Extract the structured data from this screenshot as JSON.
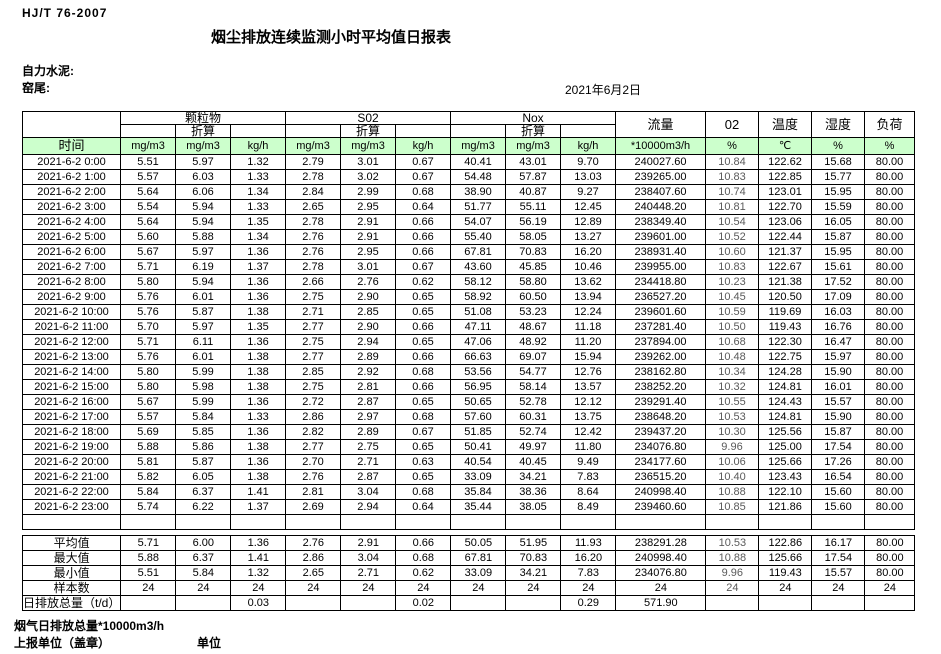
{
  "doc": {
    "standard": "HJ/T 76-2007",
    "title": "烟尘排放连续监测小时平均值日报表",
    "company": "自力水泥:",
    "station": "窑尾:",
    "date": "2021年6月2日"
  },
  "colors": {
    "header_green": "#ccffcc",
    "border": "#000000",
    "o2_text": "#5a5a5a"
  },
  "table": {
    "time_header": "时间",
    "conv_label": "折算",
    "groups": [
      {
        "label": "颗粒物"
      },
      {
        "label": "S02"
      },
      {
        "label": "Nox"
      }
    ],
    "single_cols": [
      "流量",
      "02",
      "温度",
      "湿度",
      "负荷"
    ],
    "units": [
      "mg/m3",
      "mg/m3",
      "kg/h",
      "mg/m3",
      "mg/m3",
      "kg/h",
      "mg/m3",
      "mg/m3",
      "kg/h",
      "*10000m3/h",
      "%",
      "℃",
      "%",
      "%"
    ],
    "rows": [
      {
        "time": "2021-6-2 0:00",
        "values": [
          "5.51",
          "5.97",
          "1.32",
          "2.79",
          "3.01",
          "0.67",
          "40.41",
          "43.01",
          "9.70",
          "240027.60",
          "10.84",
          "122.62",
          "15.68",
          "80.00"
        ]
      },
      {
        "time": "2021-6-2 1:00",
        "values": [
          "5.57",
          "6.03",
          "1.33",
          "2.78",
          "3.02",
          "0.67",
          "54.48",
          "57.87",
          "13.03",
          "239265.00",
          "10.83",
          "122.85",
          "15.77",
          "80.00"
        ]
      },
      {
        "time": "2021-6-2 2:00",
        "values": [
          "5.64",
          "6.06",
          "1.34",
          "2.84",
          "2.99",
          "0.68",
          "38.90",
          "40.87",
          "9.27",
          "238407.60",
          "10.74",
          "123.01",
          "15.95",
          "80.00"
        ]
      },
      {
        "time": "2021-6-2 3:00",
        "values": [
          "5.54",
          "5.94",
          "1.33",
          "2.65",
          "2.95",
          "0.64",
          "51.77",
          "55.11",
          "12.45",
          "240448.20",
          "10.81",
          "122.70",
          "15.59",
          "80.00"
        ]
      },
      {
        "time": "2021-6-2 4:00",
        "values": [
          "5.64",
          "5.94",
          "1.35",
          "2.78",
          "2.91",
          "0.66",
          "54.07",
          "56.19",
          "12.89",
          "238349.40",
          "10.54",
          "123.06",
          "16.05",
          "80.00"
        ]
      },
      {
        "time": "2021-6-2 5:00",
        "values": [
          "5.60",
          "5.88",
          "1.34",
          "2.76",
          "2.91",
          "0.66",
          "55.40",
          "58.05",
          "13.27",
          "239601.00",
          "10.52",
          "122.44",
          "15.87",
          "80.00"
        ]
      },
      {
        "time": "2021-6-2 6:00",
        "values": [
          "5.67",
          "5.97",
          "1.36",
          "2.76",
          "2.95",
          "0.66",
          "67.81",
          "70.83",
          "16.20",
          "238931.40",
          "10.60",
          "121.37",
          "15.95",
          "80.00"
        ]
      },
      {
        "time": "2021-6-2 7:00",
        "values": [
          "5.71",
          "6.19",
          "1.37",
          "2.78",
          "3.01",
          "0.67",
          "43.60",
          "45.85",
          "10.46",
          "239955.00",
          "10.83",
          "122.67",
          "15.61",
          "80.00"
        ]
      },
      {
        "time": "2021-6-2 8:00",
        "values": [
          "5.80",
          "5.94",
          "1.36",
          "2.66",
          "2.76",
          "0.62",
          "58.12",
          "58.80",
          "13.62",
          "234418.80",
          "10.23",
          "121.38",
          "17.52",
          "80.00"
        ]
      },
      {
        "time": "2021-6-2 9:00",
        "values": [
          "5.76",
          "6.01",
          "1.36",
          "2.75",
          "2.90",
          "0.65",
          "58.92",
          "60.50",
          "13.94",
          "236527.20",
          "10.45",
          "120.50",
          "17.09",
          "80.00"
        ]
      },
      {
        "time": "2021-6-2 10:00",
        "values": [
          "5.76",
          "5.87",
          "1.38",
          "2.71",
          "2.85",
          "0.65",
          "51.08",
          "53.23",
          "12.24",
          "239601.60",
          "10.59",
          "119.69",
          "16.03",
          "80.00"
        ]
      },
      {
        "time": "2021-6-2 11:00",
        "values": [
          "5.70",
          "5.97",
          "1.35",
          "2.77",
          "2.90",
          "0.66",
          "47.11",
          "48.67",
          "11.18",
          "237281.40",
          "10.50",
          "119.43",
          "16.76",
          "80.00"
        ]
      },
      {
        "time": "2021-6-2 12:00",
        "values": [
          "5.71",
          "6.11",
          "1.36",
          "2.75",
          "2.94",
          "0.65",
          "47.06",
          "48.92",
          "11.20",
          "237894.00",
          "10.68",
          "122.30",
          "16.47",
          "80.00"
        ]
      },
      {
        "time": "2021-6-2 13:00",
        "values": [
          "5.76",
          "6.01",
          "1.38",
          "2.77",
          "2.89",
          "0.66",
          "66.63",
          "69.07",
          "15.94",
          "239262.00",
          "10.48",
          "122.75",
          "15.97",
          "80.00"
        ]
      },
      {
        "time": "2021-6-2 14:00",
        "values": [
          "5.80",
          "5.99",
          "1.38",
          "2.85",
          "2.92",
          "0.68",
          "53.56",
          "54.77",
          "12.76",
          "238162.80",
          "10.34",
          "124.28",
          "15.90",
          "80.00"
        ]
      },
      {
        "time": "2021-6-2 15:00",
        "values": [
          "5.80",
          "5.98",
          "1.38",
          "2.75",
          "2.81",
          "0.66",
          "56.95",
          "58.14",
          "13.57",
          "238252.20",
          "10.32",
          "124.81",
          "16.01",
          "80.00"
        ]
      },
      {
        "time": "2021-6-2 16:00",
        "values": [
          "5.67",
          "5.99",
          "1.36",
          "2.72",
          "2.87",
          "0.65",
          "50.65",
          "52.78",
          "12.12",
          "239291.40",
          "10.55",
          "124.43",
          "15.57",
          "80.00"
        ]
      },
      {
        "time": "2021-6-2 17:00",
        "values": [
          "5.57",
          "5.84",
          "1.33",
          "2.86",
          "2.97",
          "0.68",
          "57.60",
          "60.31",
          "13.75",
          "238648.20",
          "10.53",
          "124.81",
          "15.90",
          "80.00"
        ]
      },
      {
        "time": "2021-6-2 18:00",
        "values": [
          "5.69",
          "5.85",
          "1.36",
          "2.82",
          "2.89",
          "0.67",
          "51.85",
          "52.74",
          "12.42",
          "239437.20",
          "10.30",
          "125.56",
          "15.87",
          "80.00"
        ]
      },
      {
        "time": "2021-6-2 19:00",
        "values": [
          "5.88",
          "5.86",
          "1.38",
          "2.77",
          "2.75",
          "0.65",
          "50.41",
          "49.97",
          "11.80",
          "234076.80",
          "9.96",
          "125.00",
          "17.54",
          "80.00"
        ]
      },
      {
        "time": "2021-6-2 20:00",
        "values": [
          "5.81",
          "5.87",
          "1.36",
          "2.70",
          "2.71",
          "0.63",
          "40.54",
          "40.45",
          "9.49",
          "234177.60",
          "10.06",
          "125.66",
          "17.26",
          "80.00"
        ]
      },
      {
        "time": "2021-6-2 21:00",
        "values": [
          "5.82",
          "6.05",
          "1.38",
          "2.76",
          "2.87",
          "0.65",
          "33.09",
          "34.21",
          "7.83",
          "236515.20",
          "10.40",
          "123.43",
          "16.54",
          "80.00"
        ]
      },
      {
        "time": "2021-6-2 22:00",
        "values": [
          "5.84",
          "6.37",
          "1.41",
          "2.81",
          "3.04",
          "0.68",
          "35.84",
          "38.36",
          "8.64",
          "240998.40",
          "10.88",
          "122.10",
          "15.60",
          "80.00"
        ]
      },
      {
        "time": "2021-6-2 23:00",
        "values": [
          "5.74",
          "6.22",
          "1.37",
          "2.69",
          "2.94",
          "0.64",
          "35.44",
          "38.05",
          "8.49",
          "239460.60",
          "10.85",
          "121.86",
          "15.60",
          "80.00"
        ]
      }
    ],
    "summary": [
      {
        "label": "平均值",
        "align": "center",
        "values": [
          "5.71",
          "6.00",
          "1.36",
          "2.76",
          "2.91",
          "0.66",
          "50.05",
          "51.95",
          "11.93",
          "238291.28",
          "10.53",
          "122.86",
          "16.17",
          "80.00"
        ]
      },
      {
        "label": "最大值",
        "align": "center",
        "values": [
          "5.88",
          "6.37",
          "1.41",
          "2.86",
          "3.04",
          "0.68",
          "67.81",
          "70.83",
          "16.20",
          "240998.40",
          "10.88",
          "125.66",
          "17.54",
          "80.00"
        ]
      },
      {
        "label": "最小值",
        "align": "center",
        "values": [
          "5.51",
          "5.84",
          "1.32",
          "2.65",
          "2.71",
          "0.62",
          "33.09",
          "34.21",
          "7.83",
          "234076.80",
          "9.96",
          "119.43",
          "15.57",
          "80.00"
        ]
      },
      {
        "label": "样本数",
        "align": "center",
        "values": [
          "24",
          "24",
          "24",
          "24",
          "24",
          "24",
          "24",
          "24",
          "24",
          "24",
          "24",
          "24",
          "24",
          "24"
        ]
      },
      {
        "label": "日排放总量（t/d）",
        "align": "left",
        "values": [
          "",
          "",
          "0.03",
          "",
          "",
          "0.02",
          "",
          "",
          "0.29",
          "571.90",
          "",
          "",
          "",
          ""
        ]
      }
    ]
  },
  "footer": {
    "note1": "烟气日排放总量*10000m3/h",
    "note2": "上报单位（盖章）",
    "note3": "单位"
  }
}
